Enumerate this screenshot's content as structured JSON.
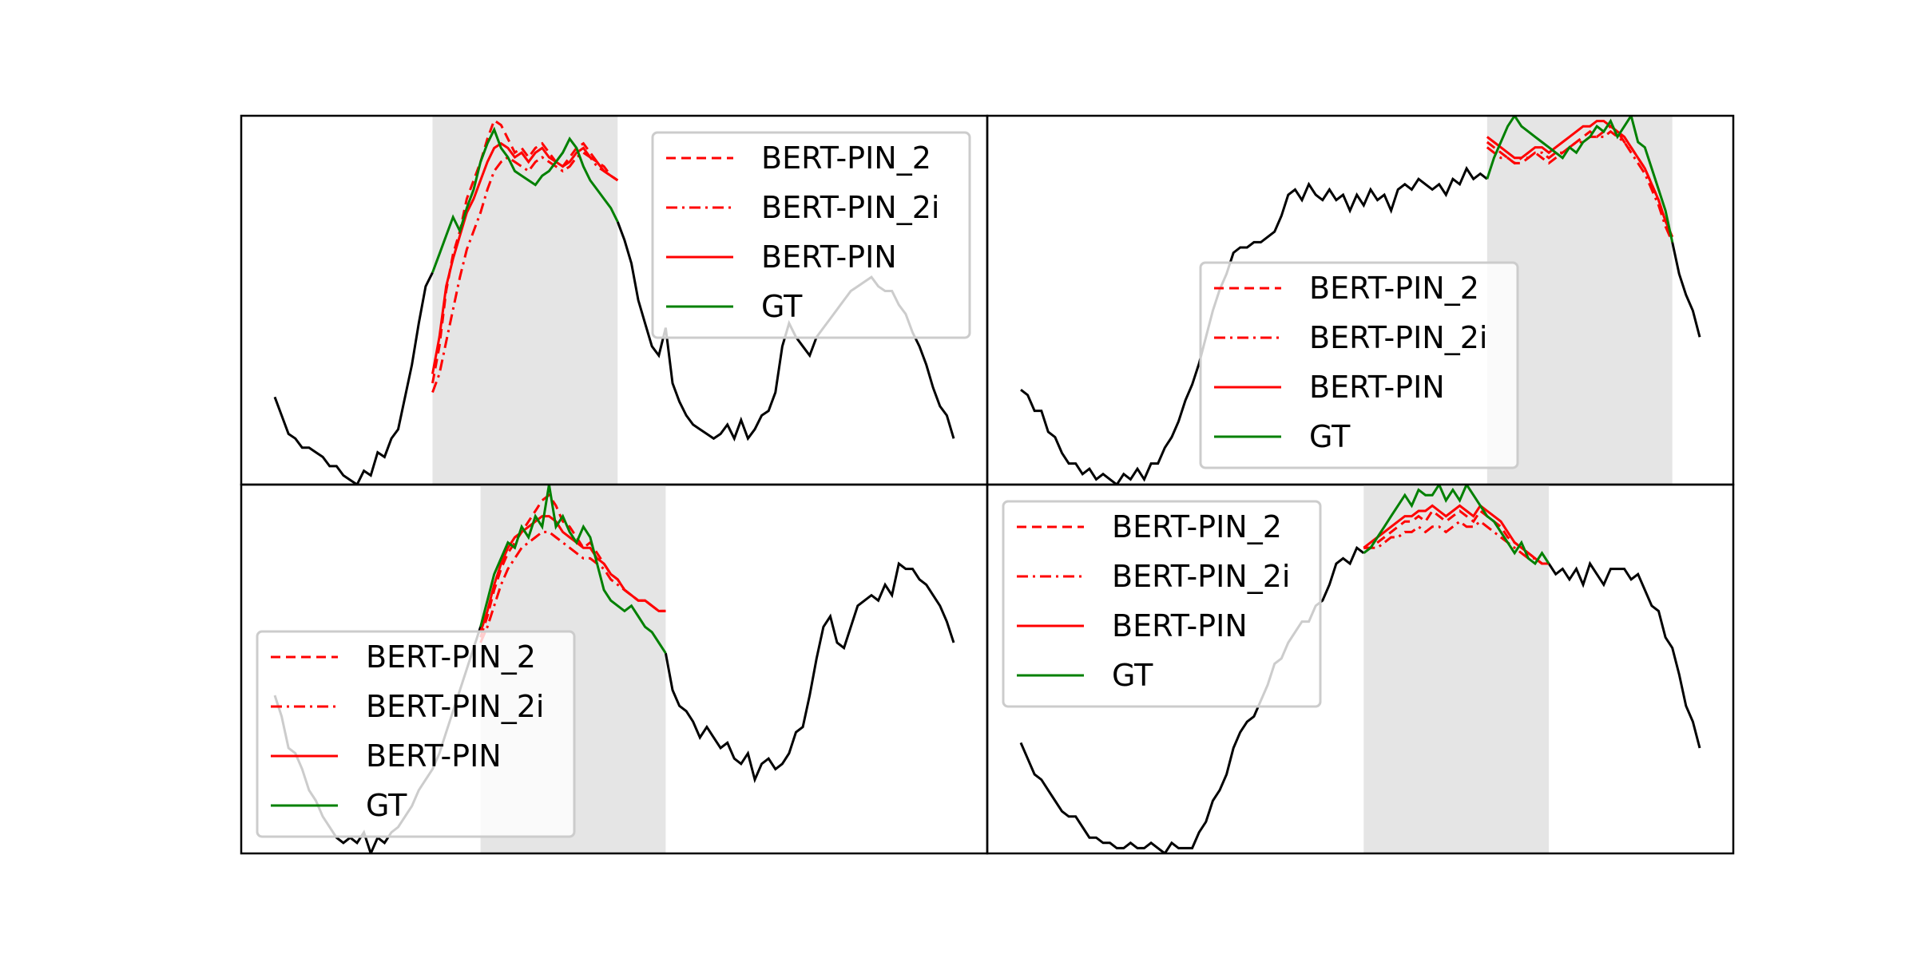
{
  "colors": {
    "context": "#000000",
    "prediction": "#ff0000",
    "ground_truth": "#008000",
    "masked_region": "#e5e5e5"
  },
  "chart_data": [
    {
      "type": "line",
      "panel": "top-left",
      "x_count": 100,
      "mask_range": [
        23,
        50
      ],
      "ylim": [
        0.2,
        1.0
      ],
      "legend": [
        "BERT-PIN_2",
        "BERT-PIN_2i",
        "BERT-PIN",
        "GT"
      ],
      "legend_placement": "top-right",
      "series": [
        {
          "name": "GT",
          "role": "ground_truth",
          "values": [
            0.39,
            0.35,
            0.31,
            0.3,
            0.28,
            0.28,
            0.27,
            0.26,
            0.24,
            0.24,
            0.22,
            0.21,
            0.2,
            0.23,
            0.22,
            0.27,
            0.26,
            0.3,
            0.32,
            0.39,
            0.46,
            0.55,
            0.63,
            0.66,
            0.7,
            0.74,
            0.78,
            0.75,
            0.8,
            0.84,
            0.9,
            0.94,
            0.97,
            0.93,
            0.91,
            0.88,
            0.87,
            0.86,
            0.85,
            0.87,
            0.88,
            0.9,
            0.92,
            0.95,
            0.93,
            0.89,
            0.86,
            0.84,
            0.82,
            0.8,
            0.77,
            0.73,
            0.68,
            0.6,
            0.55,
            0.5,
            0.48,
            0.54,
            0.42,
            0.38,
            0.35,
            0.33,
            0.32,
            0.31,
            0.3,
            0.31,
            0.33,
            0.3,
            0.34,
            0.3,
            0.32,
            0.35,
            0.36,
            0.4,
            0.5,
            0.55,
            0.52,
            0.5,
            0.48,
            0.52,
            0.54,
            0.56,
            0.58,
            0.6,
            0.62,
            0.63,
            0.64,
            0.65,
            0.63,
            0.62,
            0.62,
            0.59,
            0.57,
            0.53,
            0.5,
            0.46,
            0.41,
            0.37,
            0.35,
            0.3
          ]
        },
        {
          "name": "BERT-PIN_2",
          "role": "prediction",
          "style": "dashed",
          "mask_values": [
            0.42,
            0.5,
            0.62,
            0.7,
            0.75,
            0.82,
            0.86,
            0.9,
            0.95,
            0.99,
            0.98,
            0.95,
            0.92,
            0.93,
            0.91,
            0.93,
            0.94,
            0.92,
            0.9,
            0.89,
            0.91,
            0.93,
            0.94,
            0.92,
            0.9,
            0.89,
            0.87,
            0.86
          ]
        },
        {
          "name": "BERT-PIN_2i",
          "role": "prediction",
          "style": "dashdot",
          "mask_values": [
            0.4,
            0.44,
            0.51,
            0.58,
            0.65,
            0.71,
            0.75,
            0.79,
            0.84,
            0.88,
            0.9,
            0.91,
            0.9,
            0.89,
            0.88,
            0.9,
            0.91,
            0.9,
            0.89,
            0.88,
            0.89,
            0.91,
            0.92,
            0.91,
            0.89,
            0.88,
            0.87,
            0.86
          ]
        },
        {
          "name": "BERT-PIN",
          "role": "prediction",
          "style": "solid",
          "mask_values": [
            0.44,
            0.52,
            0.63,
            0.69,
            0.74,
            0.79,
            0.82,
            0.86,
            0.9,
            0.93,
            0.94,
            0.93,
            0.91,
            0.92,
            0.9,
            0.92,
            0.93,
            0.91,
            0.9,
            0.89,
            0.9,
            0.92,
            0.93,
            0.91,
            0.9,
            0.88,
            0.87,
            0.86
          ]
        }
      ]
    },
    {
      "type": "line",
      "panel": "top-right",
      "x_count": 100,
      "mask_range": [
        68,
        95
      ],
      "ylim": [
        0.1,
        0.8
      ],
      "legend": [
        "BERT-PIN_2",
        "BERT-PIN_2i",
        "BERT-PIN",
        "GT"
      ],
      "legend_placement": "center-right",
      "series": [
        {
          "name": "GT",
          "role": "ground_truth",
          "values": [
            0.28,
            0.27,
            0.24,
            0.24,
            0.2,
            0.19,
            0.16,
            0.14,
            0.14,
            0.12,
            0.13,
            0.11,
            0.12,
            0.11,
            0.1,
            0.12,
            0.11,
            0.13,
            0.11,
            0.14,
            0.14,
            0.17,
            0.19,
            0.22,
            0.26,
            0.29,
            0.33,
            0.38,
            0.43,
            0.47,
            0.5,
            0.54,
            0.55,
            0.55,
            0.56,
            0.56,
            0.57,
            0.58,
            0.61,
            0.65,
            0.66,
            0.64,
            0.67,
            0.65,
            0.64,
            0.66,
            0.64,
            0.65,
            0.62,
            0.65,
            0.63,
            0.66,
            0.64,
            0.65,
            0.62,
            0.66,
            0.67,
            0.66,
            0.68,
            0.67,
            0.66,
            0.67,
            0.65,
            0.68,
            0.67,
            0.7,
            0.68,
            0.69,
            0.68,
            0.72,
            0.75,
            0.78,
            0.8,
            0.78,
            0.77,
            0.76,
            0.75,
            0.74,
            0.73,
            0.72,
            0.74,
            0.73,
            0.75,
            0.76,
            0.78,
            0.77,
            0.79,
            0.76,
            0.78,
            0.8,
            0.75,
            0.74,
            0.7,
            0.66,
            0.62,
            0.56,
            0.5,
            0.46,
            0.43,
            0.38
          ]
        },
        {
          "name": "BERT-PIN_2",
          "role": "prediction",
          "style": "dashed",
          "mask_values": [
            0.75,
            0.74,
            0.73,
            0.72,
            0.71,
            0.71,
            0.72,
            0.73,
            0.72,
            0.71,
            0.72,
            0.73,
            0.74,
            0.75,
            0.76,
            0.77,
            0.76,
            0.77,
            0.78,
            0.77,
            0.75,
            0.74,
            0.72,
            0.7,
            0.67,
            0.64,
            0.6,
            0.57
          ]
        },
        {
          "name": "BERT-PIN_2i",
          "role": "prediction",
          "style": "dashdot",
          "mask_values": [
            0.74,
            0.73,
            0.72,
            0.72,
            0.71,
            0.72,
            0.72,
            0.73,
            0.73,
            0.72,
            0.73,
            0.73,
            0.74,
            0.75,
            0.75,
            0.76,
            0.76,
            0.76,
            0.77,
            0.76,
            0.75,
            0.73,
            0.71,
            0.69,
            0.66,
            0.63,
            0.59,
            0.56
          ]
        },
        {
          "name": "BERT-PIN",
          "role": "prediction",
          "style": "solid",
          "mask_values": [
            0.76,
            0.75,
            0.74,
            0.73,
            0.72,
            0.72,
            0.73,
            0.74,
            0.74,
            0.73,
            0.74,
            0.75,
            0.76,
            0.77,
            0.78,
            0.78,
            0.79,
            0.79,
            0.78,
            0.77,
            0.76,
            0.74,
            0.72,
            0.7,
            0.67,
            0.64,
            0.6,
            0.57
          ]
        }
      ]
    },
    {
      "type": "line",
      "panel": "bottom-left",
      "x_count": 100,
      "mask_range": [
        30,
        57
      ],
      "ylim": [
        0.1,
        0.8
      ],
      "legend": [
        "BERT-PIN_2",
        "BERT-PIN_2i",
        "BERT-PIN",
        "GT"
      ],
      "legend_placement": "bottom-left",
      "series": [
        {
          "name": "GT",
          "role": "ground_truth",
          "values": [
            0.4,
            0.36,
            0.3,
            0.29,
            0.26,
            0.22,
            0.2,
            0.17,
            0.15,
            0.13,
            0.12,
            0.13,
            0.12,
            0.14,
            0.1,
            0.13,
            0.12,
            0.14,
            0.15,
            0.17,
            0.19,
            0.22,
            0.24,
            0.26,
            0.29,
            0.33,
            0.37,
            0.41,
            0.45,
            0.49,
            0.53,
            0.58,
            0.63,
            0.66,
            0.69,
            0.68,
            0.72,
            0.7,
            0.74,
            0.72,
            0.8,
            0.72,
            0.74,
            0.71,
            0.69,
            0.72,
            0.7,
            0.65,
            0.6,
            0.58,
            0.57,
            0.56,
            0.57,
            0.55,
            0.53,
            0.52,
            0.5,
            0.48,
            0.41,
            0.38,
            0.37,
            0.35,
            0.32,
            0.34,
            0.32,
            0.3,
            0.31,
            0.28,
            0.27,
            0.29,
            0.24,
            0.27,
            0.28,
            0.26,
            0.27,
            0.29,
            0.33,
            0.34,
            0.4,
            0.47,
            0.53,
            0.55,
            0.5,
            0.49,
            0.53,
            0.57,
            0.58,
            0.59,
            0.58,
            0.61,
            0.59,
            0.65,
            0.64,
            0.64,
            0.62,
            0.61,
            0.59,
            0.57,
            0.54,
            0.5
          ]
        },
        {
          "name": "BERT-PIN_2",
          "role": "prediction",
          "style": "dashed",
          "mask_values": [
            0.51,
            0.55,
            0.6,
            0.64,
            0.67,
            0.69,
            0.71,
            0.73,
            0.75,
            0.77,
            0.78,
            0.76,
            0.73,
            0.72,
            0.7,
            0.68,
            0.69,
            0.67,
            0.65,
            0.63,
            0.62,
            0.6,
            0.59,
            0.58,
            0.58,
            0.57,
            0.56,
            0.56
          ]
        },
        {
          "name": "BERT-PIN_2i",
          "role": "prediction",
          "style": "dashdot",
          "mask_values": [
            0.5,
            0.53,
            0.57,
            0.61,
            0.64,
            0.66,
            0.68,
            0.69,
            0.7,
            0.71,
            0.71,
            0.7,
            0.69,
            0.68,
            0.67,
            0.66,
            0.66,
            0.65,
            0.64,
            0.62,
            0.61,
            0.6,
            0.59,
            0.58,
            0.58,
            0.57,
            0.56,
            0.56
          ]
        },
        {
          "name": "BERT-PIN",
          "role": "prediction",
          "style": "solid",
          "mask_values": [
            0.52,
            0.56,
            0.61,
            0.65,
            0.68,
            0.7,
            0.71,
            0.72,
            0.73,
            0.74,
            0.74,
            0.73,
            0.71,
            0.7,
            0.69,
            0.68,
            0.68,
            0.66,
            0.65,
            0.63,
            0.62,
            0.6,
            0.59,
            0.58,
            0.58,
            0.57,
            0.56,
            0.56
          ]
        }
      ]
    },
    {
      "type": "line",
      "panel": "bottom-right",
      "x_count": 100,
      "mask_range": [
        50,
        77
      ],
      "ylim": [
        0.15,
        0.85
      ],
      "legend": [
        "BERT-PIN_2",
        "BERT-PIN_2i",
        "BERT-PIN",
        "GT"
      ],
      "legend_placement": "top-left",
      "series": [
        {
          "name": "GT",
          "role": "ground_truth",
          "values": [
            0.36,
            0.33,
            0.3,
            0.29,
            0.27,
            0.25,
            0.23,
            0.22,
            0.22,
            0.2,
            0.18,
            0.18,
            0.17,
            0.17,
            0.16,
            0.16,
            0.17,
            0.16,
            0.16,
            0.17,
            0.16,
            0.15,
            0.17,
            0.16,
            0.16,
            0.16,
            0.19,
            0.21,
            0.25,
            0.27,
            0.3,
            0.35,
            0.38,
            0.4,
            0.41,
            0.44,
            0.47,
            0.51,
            0.52,
            0.55,
            0.57,
            0.59,
            0.59,
            0.62,
            0.63,
            0.66,
            0.7,
            0.71,
            0.7,
            0.73,
            0.72,
            0.73,
            0.75,
            0.77,
            0.79,
            0.81,
            0.83,
            0.81,
            0.84,
            0.83,
            0.83,
            0.85,
            0.82,
            0.84,
            0.82,
            0.85,
            0.83,
            0.81,
            0.79,
            0.78,
            0.76,
            0.74,
            0.72,
            0.74,
            0.71,
            0.7,
            0.72,
            0.7,
            0.68,
            0.69,
            0.67,
            0.69,
            0.66,
            0.7,
            0.68,
            0.66,
            0.69,
            0.69,
            0.69,
            0.67,
            0.68,
            0.65,
            0.62,
            0.61,
            0.56,
            0.54,
            0.49,
            0.43,
            0.4,
            0.35
          ]
        },
        {
          "name": "BERT-PIN_2",
          "role": "prediction",
          "style": "dashed",
          "mask_values": [
            0.73,
            0.73,
            0.74,
            0.75,
            0.76,
            0.77,
            0.78,
            0.78,
            0.79,
            0.78,
            0.8,
            0.79,
            0.78,
            0.79,
            0.8,
            0.79,
            0.78,
            0.8,
            0.79,
            0.78,
            0.77,
            0.75,
            0.74,
            0.73,
            0.72,
            0.71,
            0.7,
            0.7
          ]
        },
        {
          "name": "BERT-PIN_2i",
          "role": "prediction",
          "style": "dashdot",
          "mask_values": [
            0.73,
            0.73,
            0.73,
            0.74,
            0.75,
            0.75,
            0.76,
            0.76,
            0.77,
            0.76,
            0.77,
            0.77,
            0.76,
            0.77,
            0.78,
            0.77,
            0.77,
            0.78,
            0.77,
            0.76,
            0.75,
            0.74,
            0.73,
            0.72,
            0.71,
            0.71,
            0.7,
            0.7
          ]
        },
        {
          "name": "BERT-PIN",
          "role": "prediction",
          "style": "solid",
          "mask_values": [
            0.73,
            0.74,
            0.75,
            0.76,
            0.77,
            0.78,
            0.79,
            0.79,
            0.8,
            0.8,
            0.81,
            0.8,
            0.79,
            0.8,
            0.81,
            0.8,
            0.79,
            0.81,
            0.8,
            0.79,
            0.78,
            0.76,
            0.74,
            0.73,
            0.72,
            0.71,
            0.7,
            0.7
          ]
        }
      ]
    }
  ]
}
